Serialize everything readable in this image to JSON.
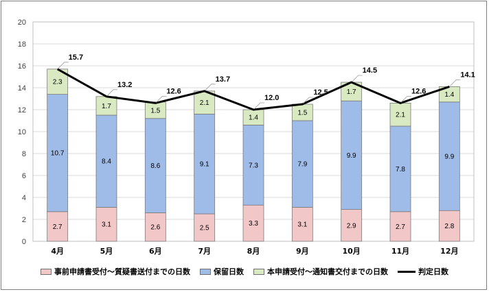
{
  "chart_data": {
    "type": "bar",
    "stacked": true,
    "categories": [
      "4月",
      "5月",
      "6月",
      "7月",
      "8月",
      "9月",
      "10月",
      "11月",
      "12月"
    ],
    "series": [
      {
        "name": "事前申請書受付〜質疑書送付までの日数",
        "type": "bar",
        "color": "#f2c7c8",
        "values": [
          2.7,
          3.1,
          2.6,
          2.5,
          3.3,
          3.1,
          2.9,
          2.7,
          2.8
        ]
      },
      {
        "name": "保留日数",
        "type": "bar",
        "color": "#9fbbe8",
        "values": [
          10.7,
          8.4,
          8.6,
          9.1,
          7.3,
          7.9,
          9.9,
          7.8,
          9.9
        ]
      },
      {
        "name": "本申請受付〜通知書交付までの日数",
        "type": "bar",
        "color": "#d9eac3",
        "values": [
          2.3,
          1.7,
          1.5,
          2.1,
          1.4,
          1.5,
          1.7,
          2.1,
          1.4
        ]
      },
      {
        "name": "判定日数",
        "type": "line",
        "color": "#000000",
        "values": [
          15.7,
          13.2,
          12.6,
          13.7,
          12.0,
          12.5,
          14.5,
          12.6,
          14.1
        ],
        "labels": [
          "15.7",
          "13.2",
          "12.6",
          "13.7",
          "12.0",
          "12.5",
          "14.5",
          "12.6",
          "14.1"
        ]
      }
    ],
    "segment_labels": [
      [
        "2.7",
        "3.1",
        "2.6",
        "2.5",
        "3.3",
        "3.1",
        "2.9",
        "2.7",
        "2.8"
      ],
      [
        "10.7",
        "8.4",
        "8.6",
        "9.1",
        "7.3",
        "7.9",
        "9.9",
        "7.8",
        "9.9"
      ],
      [
        "2.3",
        "1.7",
        "1.5",
        "2.1",
        "1.4",
        "1.5",
        "1.7",
        "2.1",
        "1.4"
      ]
    ],
    "yticks": [
      "0",
      "2",
      "4",
      "6",
      "8",
      "10",
      "12",
      "14",
      "16",
      "18",
      "20"
    ],
    "ylim": [
      0,
      20
    ],
    "grid": true,
    "legend": "bottom"
  }
}
